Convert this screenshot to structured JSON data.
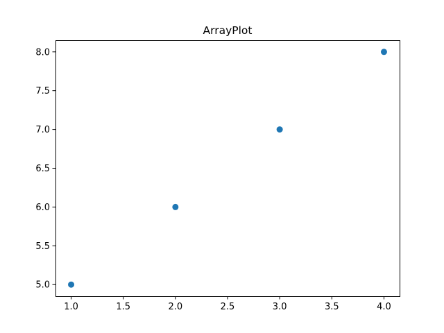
{
  "chart_data": {
    "type": "scatter",
    "title": "ArrayPlot",
    "xlabel": "",
    "ylabel": "",
    "series": [
      {
        "x": [
          1.0,
          2.0,
          3.0,
          4.0
        ],
        "y": [
          5.0,
          6.0,
          7.0,
          8.0
        ],
        "color": "#1f77b4"
      }
    ],
    "xlim": [
      0.85,
      4.15
    ],
    "ylim": [
      4.85,
      8.15
    ],
    "x_ticks": [
      1.0,
      1.5,
      2.0,
      2.5,
      3.0,
      3.5,
      4.0
    ],
    "x_tick_labels": [
      "1.0",
      "1.5",
      "2.0",
      "2.5",
      "3.0",
      "3.5",
      "4.0"
    ],
    "y_ticks": [
      5.0,
      5.5,
      6.0,
      6.5,
      7.0,
      7.5,
      8.0
    ],
    "y_tick_labels": [
      "5.0",
      "5.5",
      "6.0",
      "6.5",
      "7.0",
      "7.5",
      "8.0"
    ],
    "grid": false,
    "legend": "none"
  }
}
